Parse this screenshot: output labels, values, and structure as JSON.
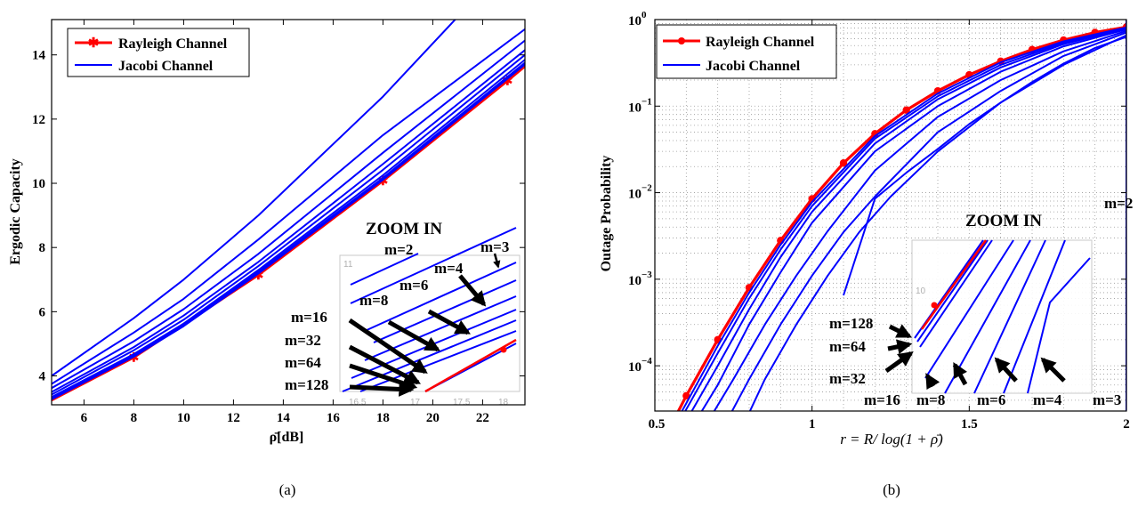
{
  "colors": {
    "rayleigh": "#ff0000",
    "jacobi": "#0000ff",
    "axis": "#000000",
    "grid": "#9a9a9a",
    "inset_frame": "#c8c8c8"
  },
  "chart_data": [
    {
      "panel": "a",
      "caption": "(a)",
      "type": "line",
      "xlabel": "ρ̄[dB]",
      "ylabel": "Ergodic Capacity",
      "xlim": [
        4.7,
        23.7
      ],
      "ylim": [
        3.1,
        15.1
      ],
      "xticks": [
        6,
        8,
        10,
        12,
        14,
        16,
        18,
        20,
        22
      ],
      "yticks": [
        4,
        6,
        8,
        10,
        12,
        14
      ],
      "grid": false,
      "legend_position": "top-left",
      "legend": [
        {
          "label": "Rayleigh Channel",
          "color": "#ff0000",
          "marker": "asterisk"
        },
        {
          "label": "Jacobi Channel",
          "color": "#0000ff",
          "marker": "none"
        }
      ],
      "series": [
        {
          "legend": "Rayleigh Channel",
          "color": "#ff0000",
          "x": [
            4.7,
            8,
            13,
            18,
            23,
            23.7
          ],
          "y": [
            3.25,
            4.58,
            7.15,
            10.08,
            13.2,
            13.65
          ],
          "markers_x": [
            8,
            13,
            18,
            23
          ]
        },
        {
          "legend": "Jacobi Channel",
          "label": "m=2",
          "color": "#0000ff",
          "x": [
            4.7,
            8,
            10,
            13,
            18,
            20.9
          ],
          "y": [
            4.0,
            5.8,
            7.0,
            9.0,
            12.7,
            15.1
          ]
        },
        {
          "legend": "Jacobi Channel",
          "label": "m=3",
          "color": "#0000ff",
          "x": [
            4.7,
            8,
            10,
            13,
            18,
            23.7
          ],
          "y": [
            3.75,
            5.35,
            6.4,
            8.25,
            11.5,
            14.8
          ]
        },
        {
          "legend": "Jacobi Channel",
          "label": "m=4",
          "color": "#0000ff",
          "x": [
            4.7,
            8,
            10,
            13,
            18,
            23.7
          ],
          "y": [
            3.62,
            5.08,
            6.08,
            7.8,
            10.95,
            14.45
          ]
        },
        {
          "legend": "Jacobi Channel",
          "label": "m=6",
          "color": "#0000ff",
          "x": [
            4.7,
            8,
            10,
            13,
            18,
            23.7
          ],
          "y": [
            3.5,
            4.9,
            5.88,
            7.55,
            10.6,
            14.15
          ]
        },
        {
          "legend": "Jacobi Channel",
          "label": "m=8",
          "color": "#0000ff",
          "x": [
            4.7,
            8,
            10,
            13,
            18,
            23.7
          ],
          "y": [
            3.42,
            4.8,
            5.75,
            7.42,
            10.42,
            14.0
          ]
        },
        {
          "legend": "Jacobi Channel",
          "label": "m=16",
          "color": "#0000ff",
          "x": [
            4.7,
            8,
            10,
            13,
            18,
            23.7
          ],
          "y": [
            3.34,
            4.68,
            5.63,
            7.3,
            10.25,
            13.85
          ]
        },
        {
          "legend": "Jacobi Channel",
          "label": "m=32",
          "color": "#0000ff",
          "x": [
            4.7,
            8,
            10,
            13,
            18,
            23.7
          ],
          "y": [
            3.3,
            4.63,
            5.58,
            7.24,
            10.17,
            13.76
          ]
        },
        {
          "legend": "Jacobi Channel",
          "label": "m=64",
          "color": "#0000ff",
          "x": [
            4.7,
            8,
            10,
            13,
            18,
            23.7
          ],
          "y": [
            3.28,
            4.61,
            5.56,
            7.21,
            10.13,
            13.72
          ]
        },
        {
          "legend": "Jacobi Channel",
          "label": "m=128",
          "color": "#0000ff",
          "x": [
            4.7,
            8,
            10,
            13,
            18,
            23.7
          ],
          "y": [
            3.27,
            4.6,
            5.55,
            7.19,
            10.11,
            13.7
          ]
        }
      ],
      "inset": {
        "title": "ZOOM IN",
        "xticks": [
          "16.5",
          "17",
          "17.5",
          "18"
        ],
        "ytick_top": "11",
        "labels": [
          "m=2",
          "m=3",
          "m=4",
          "m=6",
          "m=8",
          "m=16",
          "m=32",
          "m=64",
          "m=128"
        ]
      }
    },
    {
      "panel": "b",
      "caption": "(b)",
      "type": "line",
      "xlabel": "r = R/ log(1 + ρ̄)",
      "ylabel": "Outage Probability",
      "xlim": [
        0.5,
        2.0
      ],
      "ylim": [
        3e-05,
        1
      ],
      "yscale": "log",
      "xticks": [
        0.5,
        1,
        1.5,
        2
      ],
      "xtick_labels": [
        "0.5",
        "1",
        "1.5",
        "2"
      ],
      "ytick_base": "10",
      "ytick_exponents": [
        "0",
        "−1",
        "−2",
        "−3",
        "−4"
      ],
      "grid": true,
      "legend_position": "top-left",
      "legend": [
        {
          "label": "Rayleigh Channel",
          "color": "#ff0000",
          "marker": "dot"
        },
        {
          "label": "Jacobi Channel",
          "color": "#0000ff",
          "marker": "none"
        }
      ],
      "series": [
        {
          "legend": "Rayleigh Channel",
          "color": "#ff0000",
          "x": [
            0.55,
            0.6,
            0.7,
            0.8,
            0.9,
            1.0,
            1.1,
            1.2,
            1.3,
            1.4,
            1.5,
            1.6,
            1.7,
            1.8,
            1.9,
            2.0
          ],
          "y": [
            2e-05,
            4.5e-05,
            0.0002,
            0.0008,
            0.0028,
            0.0085,
            0.022,
            0.048,
            0.09,
            0.15,
            0.23,
            0.33,
            0.45,
            0.58,
            0.71,
            0.82
          ],
          "markers": true
        },
        {
          "legend": "Jacobi Channel",
          "label": "m=128",
          "color": "#0000ff",
          "x": [
            0.56,
            0.7,
            0.8,
            0.9,
            1.0,
            1.2,
            1.4,
            1.6,
            1.8,
            2.0
          ],
          "y": [
            2e-05,
            0.00017,
            0.0007,
            0.0025,
            0.0078,
            0.045,
            0.14,
            0.32,
            0.56,
            0.81
          ]
        },
        {
          "legend": "Jacobi Channel",
          "label": "m=64",
          "color": "#0000ff",
          "x": [
            0.57,
            0.7,
            0.8,
            0.9,
            1.0,
            1.2,
            1.4,
            1.6,
            1.8,
            2.0
          ],
          "y": [
            2e-05,
            0.00014,
            0.0006,
            0.0022,
            0.007,
            0.042,
            0.13,
            0.3,
            0.54,
            0.8
          ]
        },
        {
          "legend": "Jacobi Channel",
          "label": "m=32",
          "color": "#0000ff",
          "x": [
            0.59,
            0.7,
            0.8,
            0.9,
            1.0,
            1.2,
            1.4,
            1.6,
            1.8,
            2.0
          ],
          "y": [
            2e-05,
            0.0001,
            0.00045,
            0.0018,
            0.006,
            0.037,
            0.12,
            0.28,
            0.52,
            0.79
          ]
        },
        {
          "legend": "Jacobi Channel",
          "label": "m=16",
          "color": "#0000ff",
          "x": [
            0.62,
            0.7,
            0.8,
            0.9,
            1.0,
            1.2,
            1.4,
            1.6,
            1.8,
            2.0
          ],
          "y": [
            2e-05,
            6e-05,
            0.0003,
            0.0012,
            0.0045,
            0.03,
            0.1,
            0.25,
            0.49,
            0.77
          ]
        },
        {
          "legend": "Jacobi Channel",
          "label": "m=8",
          "color": "#0000ff",
          "x": [
            0.66,
            0.75,
            0.85,
            0.95,
            1.05,
            1.2,
            1.4,
            1.6,
            1.8,
            2.0
          ],
          "y": [
            2e-05,
            7e-05,
            0.0003,
            0.0011,
            0.0036,
            0.018,
            0.075,
            0.2,
            0.43,
            0.74
          ]
        },
        {
          "legend": "Jacobi Channel",
          "label": "m=6",
          "color": "#0000ff",
          "x": [
            0.72,
            0.8,
            0.9,
            1.0,
            1.1,
            1.2,
            1.4,
            1.6,
            1.8,
            2.0
          ],
          "y": [
            2e-05,
            7e-05,
            0.0003,
            0.0011,
            0.0035,
            0.009,
            0.05,
            0.15,
            0.38,
            0.71
          ]
        },
        {
          "legend": "Jacobi Channel",
          "label": "m=4",
          "color": "#0000ff",
          "x": [
            0.78,
            0.85,
            0.95,
            1.05,
            1.15,
            1.25,
            1.4,
            1.6,
            1.8,
            2.0
          ],
          "y": [
            2e-05,
            7e-05,
            0.0003,
            0.0011,
            0.0035,
            0.009,
            0.03,
            0.11,
            0.3,
            0.66
          ]
        },
        {
          "legend": "Jacobi Channel",
          "label": "m=3",
          "color": "#0000ff",
          "x": [
            1.1,
            1.2,
            1.3,
            1.4,
            1.5,
            1.6,
            1.7,
            1.8,
            1.9,
            2.0
          ],
          "y": [
            0.00065,
            0.0085,
            0.017,
            0.032,
            0.062,
            0.11,
            0.19,
            0.31,
            0.47,
            0.63
          ]
        },
        {
          "legend": "Jacobi Channel",
          "label": "m=2",
          "color": "#0000ff",
          "x": [
            2.0,
            2.0
          ],
          "y": [
            3e-05,
            1.0
          ]
        }
      ],
      "inset": {
        "title": "ZOOM IN",
        "labels": [
          "m=128",
          "m=64",
          "m=32",
          "m=16",
          "m=8",
          "m=6",
          "m=4",
          "m=3"
        ],
        "side_label": "m=2"
      }
    }
  ]
}
